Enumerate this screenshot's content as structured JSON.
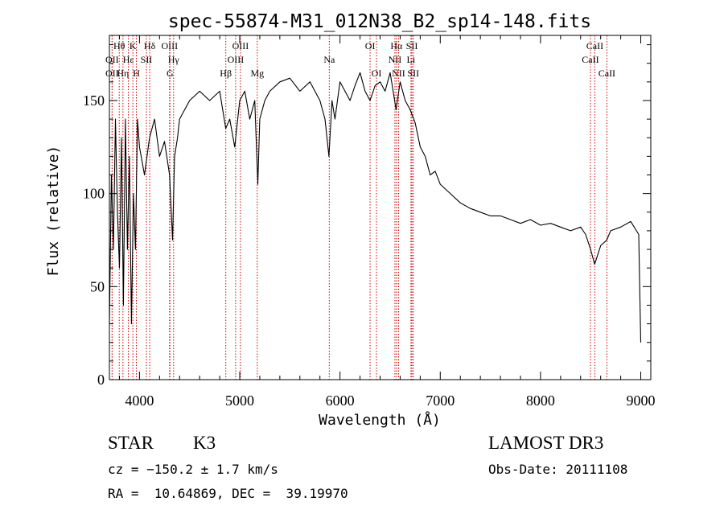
{
  "chart_data": {
    "type": "line",
    "title": "spec-55874-M31_012N38_B2_sp14-148.fits",
    "xlabel": "Wavelength (Å)",
    "ylabel": "Flux (relative)",
    "xlim": [
      3700,
      9100
    ],
    "ylim": [
      0,
      185
    ],
    "x_ticks": [
      4000,
      5000,
      6000,
      7000,
      8000,
      9000
    ],
    "y_ticks": [
      0,
      50,
      100,
      150
    ],
    "grid": false,
    "line_color": "#000000",
    "marker_color": "#cc0000",
    "series": [
      {
        "x": [
          3700,
          3720,
          3740,
          3760,
          3780,
          3800,
          3820,
          3840,
          3860,
          3880,
          3900,
          3920,
          3940,
          3960,
          3980,
          4000,
          4050,
          4100,
          4150,
          4200,
          4250,
          4300,
          4330,
          4350,
          4380,
          4400,
          4450,
          4500,
          4600,
          4700,
          4800,
          4860,
          4900,
          4950,
          5000,
          5050,
          5100,
          5150,
          5180,
          5200,
          5250,
          5300,
          5400,
          5500,
          5600,
          5700,
          5800,
          5850,
          5890,
          5920,
          5950,
          6000,
          6050,
          6100,
          6150,
          6200,
          6250,
          6300,
          6350,
          6400,
          6450,
          6500,
          6560,
          6600,
          6650,
          6700,
          6750,
          6800,
          6850,
          6900,
          6950,
          7000,
          7100,
          7200,
          7300,
          7400,
          7500,
          7600,
          7700,
          7800,
          7900,
          8000,
          8100,
          8200,
          8300,
          8400,
          8450,
          8500,
          8540,
          8600,
          8660,
          8700,
          8800,
          8900,
          8980,
          9000
        ],
        "y": [
          30,
          110,
          70,
          140,
          90,
          60,
          130,
          40,
          140,
          70,
          120,
          30,
          100,
          70,
          140,
          125,
          110,
          130,
          140,
          120,
          128,
          110,
          75,
          120,
          130,
          140,
          145,
          150,
          155,
          150,
          155,
          135,
          140,
          125,
          150,
          155,
          140,
          150,
          105,
          140,
          150,
          155,
          160,
          162,
          155,
          160,
          150,
          140,
          120,
          150,
          140,
          160,
          155,
          150,
          158,
          165,
          155,
          150,
          158,
          160,
          155,
          165,
          145,
          160,
          150,
          145,
          138,
          125,
          120,
          110,
          112,
          105,
          100,
          95,
          92,
          90,
          88,
          88,
          86,
          84,
          86,
          83,
          84,
          82,
          80,
          82,
          78,
          70,
          62,
          72,
          75,
          80,
          82,
          85,
          78,
          20
        ]
      }
    ],
    "lines": [
      {
        "name": "OII",
        "wl": 3727,
        "row": 2
      },
      {
        "name": "OII",
        "wl": 3727,
        "row": 3
      },
      {
        "name": "Hθ",
        "wl": 3798,
        "row": 1
      },
      {
        "name": "Hη",
        "wl": 3835,
        "row": 3
      },
      {
        "name": "Hε",
        "wl": 3889,
        "row": 2
      },
      {
        "name": "K",
        "wl": 3934,
        "row": 1
      },
      {
        "name": "H",
        "wl": 3969,
        "row": 3
      },
      {
        "name": "SII",
        "wl": 4069,
        "row": 2
      },
      {
        "name": "Hδ",
        "wl": 4102,
        "row": 1
      },
      {
        "name": "OIII",
        "wl": 4300,
        "row": 1
      },
      {
        "name": "Hγ",
        "wl": 4340,
        "row": 2
      },
      {
        "name": "G",
        "wl": 4304,
        "row": 3
      },
      {
        "name": "Hβ",
        "wl": 4861,
        "row": 3
      },
      {
        "name": "OIII",
        "wl": 4959,
        "row": 2
      },
      {
        "name": "OIII",
        "wl": 5007,
        "row": 1
      },
      {
        "name": "Mg",
        "wl": 5175,
        "row": 3
      },
      {
        "name": "Na",
        "wl": 5893,
        "row": 2
      },
      {
        "name": "OI",
        "wl": 6300,
        "row": 1
      },
      {
        "name": "OI",
        "wl": 6364,
        "row": 3
      },
      {
        "name": "Hα",
        "wl": 6563,
        "row": 1
      },
      {
        "name": "NII",
        "wl": 6548,
        "row": 2
      },
      {
        "name": "NII",
        "wl": 6584,
        "row": 3
      },
      {
        "name": "SII",
        "wl": 6717,
        "row": 1
      },
      {
        "name": "Li",
        "wl": 6708,
        "row": 2
      },
      {
        "name": "SII",
        "wl": 6731,
        "row": 3
      },
      {
        "name": "CaII",
        "wl": 8498,
        "row": 2
      },
      {
        "name": "CaII",
        "wl": 8542,
        "row": 1
      },
      {
        "name": "CaII",
        "wl": 8662,
        "row": 3
      }
    ]
  },
  "info": {
    "class": "STAR",
    "subclass": "K3",
    "survey": "LAMOST DR3",
    "cz": "cz = −150.2 ± 1.7 km/s",
    "obs_date": "Obs-Date: 20111108",
    "coords": "RA =  10.64869, DEC =  39.19970"
  }
}
